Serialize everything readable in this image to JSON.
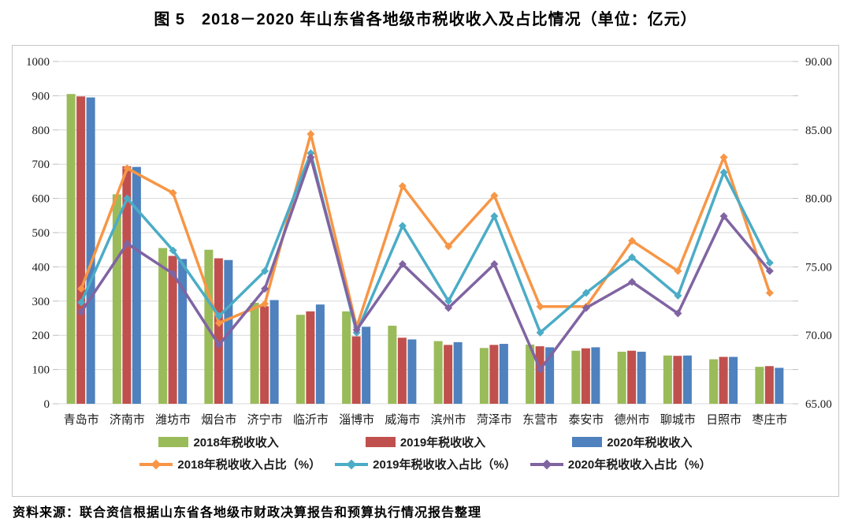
{
  "title": "图 5　2018－2020 年山东省各地级市税收收入及占比情况（单位：亿元）",
  "source": "资料来源：联合资信根据山东省各地级市财政决算报告和预算执行情况报告整理",
  "colors": {
    "bar_2018": "#9ABB59",
    "bar_2019": "#C0504D",
    "bar_2020": "#4E81BD",
    "line_2018": "#F79646",
    "line_2019": "#4BACC6",
    "line_2020": "#8064A2",
    "grid": "#D9D9D9",
    "axis_text": "#1a1a1a"
  },
  "chart_data": {
    "type": "bar",
    "subtype": "grouped-bars-with-lines",
    "title": "图 5　2018－2020 年山东省各地级市税收收入及占比情况（单位：亿元）",
    "categories": [
      "青岛市",
      "济南市",
      "潍坊市",
      "烟台市",
      "济宁市",
      "临沂市",
      "淄博市",
      "威海市",
      "滨州市",
      "菏泽市",
      "东营市",
      "泰安市",
      "德州市",
      "聊城市",
      "日照市",
      "枣庄市"
    ],
    "bar_series": [
      {
        "name": "2018年税收收入",
        "axis": "left",
        "color_key": "bar_2018",
        "values": [
          905,
          612,
          455,
          450,
          295,
          260,
          270,
          228,
          183,
          163,
          173,
          155,
          152,
          141,
          130,
          108
        ]
      },
      {
        "name": "2019年税收收入",
        "axis": "left",
        "color_key": "bar_2019",
        "values": [
          898,
          694,
          432,
          425,
          285,
          270,
          197,
          193,
          172,
          172,
          168,
          162,
          155,
          140,
          137,
          110
        ]
      },
      {
        "name": "2020年税收收入",
        "axis": "left",
        "color_key": "bar_2020",
        "values": [
          895,
          692,
          423,
          420,
          303,
          290,
          225,
          188,
          180,
          175,
          165,
          165,
          152,
          141,
          137,
          105
        ]
      }
    ],
    "line_series": [
      {
        "name": "2018年税收收入占比（%）",
        "axis": "right",
        "color_key": "line_2018",
        "values": [
          73.4,
          82.2,
          80.4,
          70.9,
          72.3,
          84.7,
          70.6,
          80.9,
          76.5,
          80.2,
          72.1,
          72.1,
          76.9,
          74.7,
          83.0,
          73.1
        ]
      },
      {
        "name": "2019年税收收入占比（%）",
        "axis": "right",
        "color_key": "line_2019",
        "values": [
          72.4,
          80.0,
          76.2,
          71.4,
          74.7,
          83.3,
          70.2,
          78.0,
          72.5,
          78.7,
          70.2,
          73.1,
          75.7,
          72.9,
          81.9,
          75.3
        ]
      },
      {
        "name": "2020年税收收入占比（%）",
        "axis": "right",
        "color_key": "line_2020",
        "values": [
          71.7,
          76.7,
          74.5,
          69.3,
          73.4,
          83.0,
          70.4,
          75.2,
          72.0,
          75.2,
          67.5,
          72.0,
          73.9,
          71.6,
          78.7,
          74.7
        ]
      }
    ],
    "left_axis": {
      "min": 0,
      "max": 1000,
      "step": 100,
      "ticks": [
        "0",
        "100",
        "200",
        "300",
        "400",
        "500",
        "600",
        "700",
        "800",
        "900",
        "1000"
      ]
    },
    "right_axis": {
      "min": 65,
      "max": 90,
      "step": 5,
      "ticks": [
        "65.00",
        "70.00",
        "75.00",
        "80.00",
        "85.00",
        "90.00"
      ]
    },
    "grid": true,
    "legend_position": "bottom"
  }
}
